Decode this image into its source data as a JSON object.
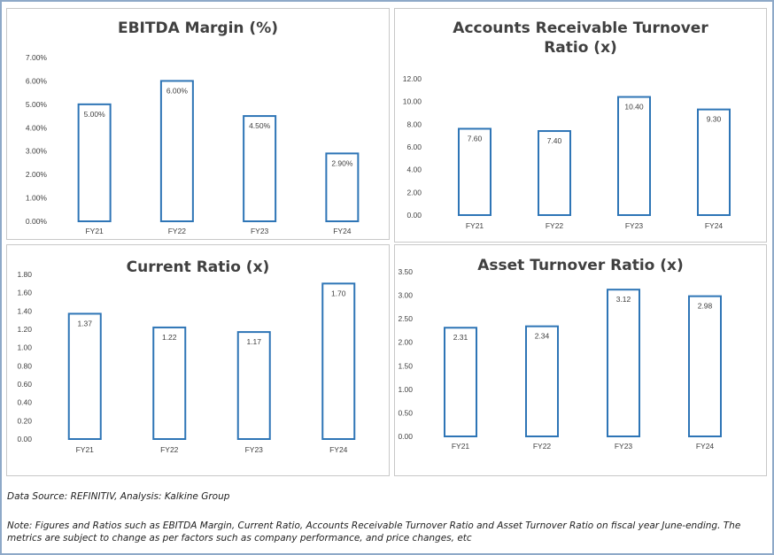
{
  "chart_data": [
    {
      "type": "bar",
      "title": "EBITDA Margin (%)",
      "categories": [
        "FY21",
        "FY22",
        "FY23",
        "FY24"
      ],
      "values": [
        5.0,
        6.0,
        4.5,
        2.9
      ],
      "value_labels": [
        "5.00%",
        "6.00%",
        "4.50%",
        "2.90%"
      ],
      "ylim": [
        0,
        7
      ],
      "yticks": [
        0,
        1,
        2,
        3,
        4,
        5,
        6,
        7
      ],
      "ytick_labels": [
        "0.00%",
        "1.00%",
        "2.00%",
        "3.00%",
        "4.00%",
        "5.00%",
        "6.00%",
        "7.00%"
      ],
      "xlabel": "",
      "ylabel": "",
      "grid": false,
      "legend": "none"
    },
    {
      "type": "bar",
      "title": "Accounts Receivable Turnover Ratio (x)",
      "categories": [
        "FY21",
        "FY22",
        "FY23",
        "FY24"
      ],
      "values": [
        7.6,
        7.4,
        10.4,
        9.3
      ],
      "value_labels": [
        "7.60",
        "7.40",
        "10.40",
        "9.30"
      ],
      "ylim": [
        0,
        12
      ],
      "yticks": [
        0,
        2,
        4,
        6,
        8,
        10,
        12
      ],
      "ytick_labels": [
        "0.00",
        "2.00",
        "4.00",
        "6.00",
        "8.00",
        "10.00",
        "12.00"
      ],
      "xlabel": "",
      "ylabel": "",
      "grid": false,
      "legend": "none"
    },
    {
      "type": "bar",
      "title": "Current Ratio (x)",
      "categories": [
        "FY21",
        "FY22",
        "FY23",
        "FY24"
      ],
      "values": [
        1.37,
        1.22,
        1.17,
        1.7
      ],
      "value_labels": [
        "1.37",
        "1.22",
        "1.17",
        "1.70"
      ],
      "ylim": [
        0,
        1.8
      ],
      "yticks": [
        0,
        0.2,
        0.4,
        0.6,
        0.8,
        1.0,
        1.2,
        1.4,
        1.6,
        1.8
      ],
      "ytick_labels": [
        "0.00",
        "0.20",
        "0.40",
        "0.60",
        "0.80",
        "1.00",
        "1.20",
        "1.40",
        "1.60",
        "1.80"
      ],
      "xlabel": "",
      "ylabel": "",
      "grid": false,
      "legend": "none"
    },
    {
      "type": "bar",
      "title": "Asset Turnover Ratio (x)",
      "categories": [
        "FY21",
        "FY22",
        "FY23",
        "FY24"
      ],
      "values": [
        2.31,
        2.34,
        3.12,
        2.98
      ],
      "value_labels": [
        "2.31",
        "2.34",
        "3.12",
        "2.98"
      ],
      "ylim": [
        0,
        3.5
      ],
      "yticks": [
        0,
        0.5,
        1.0,
        1.5,
        2.0,
        2.5,
        3.0,
        3.5
      ],
      "ytick_labels": [
        "0.00",
        "0.50",
        "1.00",
        "1.50",
        "2.00",
        "2.50",
        "3.00",
        "3.50"
      ],
      "xlabel": "",
      "ylabel": "",
      "grid": false,
      "legend": "none"
    }
  ],
  "colors": {
    "bar_outline": "#2e75b6",
    "bar_fill": "#ffffff",
    "text": "#404040"
  },
  "footer": {
    "source": "Data Source: REFINITIV, Analysis: Kalkine Group",
    "note": "Note: Figures and Ratios such as EBITDA Margin, Current Ratio, Accounts Receivable Turnover Ratio and Asset Turnover Ratio on fiscal year June-ending. The metrics are subject to change as per factors such as company performance, and price changes, etc"
  }
}
